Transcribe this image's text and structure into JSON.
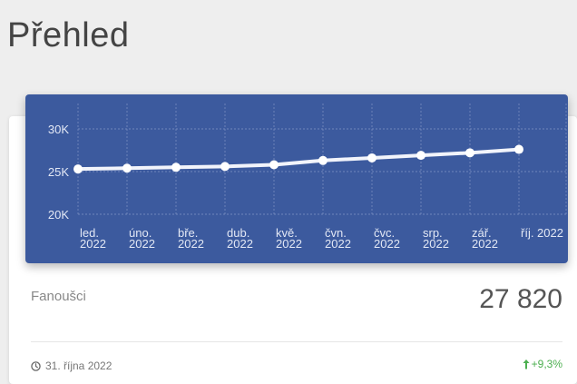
{
  "page": {
    "title": "Přehled"
  },
  "chart_data": {
    "type": "line",
    "categories": [
      "led.\n2022",
      "úno.\n2022",
      "bře.\n2022",
      "dub.\n2022",
      "kvě.\n2022",
      "čvn.\n2022",
      "čvc.\n2022",
      "srp.\n2022",
      "zář.\n2022",
      "říj. 2022"
    ],
    "series": [
      {
        "values": [
          25300,
          25400,
          25500,
          25600,
          25800,
          26300,
          26600,
          26900,
          27200,
          27600
        ]
      }
    ],
    "y_ticks": [
      "30K",
      "25K",
      "20K"
    ],
    "ylim": [
      20000,
      30000
    ],
    "grid": true,
    "colors": {
      "background": "#3c5a9e",
      "line": "#f2f4fb",
      "grid": "#7f93c4",
      "text": "#e3e8f5"
    }
  },
  "stat": {
    "label": "Fanoušci",
    "value": "27 820"
  },
  "footer": {
    "date": "31. října 2022",
    "change": "+9,3%",
    "change_color": "#4caf50"
  }
}
